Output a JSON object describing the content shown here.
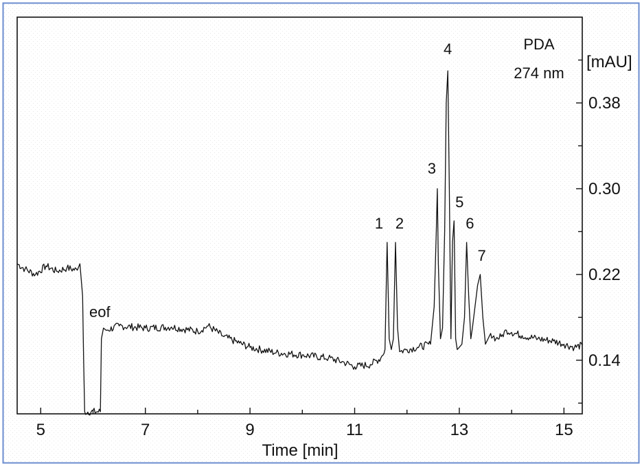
{
  "chart_data": {
    "type": "line",
    "title": "",
    "xlabel": "Time [min]",
    "ylabel": "[mAU]",
    "xlim": [
      4.55,
      15.35
    ],
    "ylim": [
      0.09,
      0.46
    ],
    "x_ticks": [
      5,
      7,
      9,
      11,
      13,
      15
    ],
    "y_ticks": [
      0.14,
      0.22,
      0.3,
      0.38
    ],
    "annotations": {
      "detector": "PDA",
      "wavelength": "274 nm",
      "eof": "eof"
    },
    "peaks": [
      {
        "label": "1",
        "x": 11.65,
        "y": 0.25
      },
      {
        "label": "2",
        "x": 11.78,
        "y": 0.25
      },
      {
        "label": "3",
        "x": 12.58,
        "y": 0.3
      },
      {
        "label": "4",
        "x": 12.78,
        "y": 0.41
      },
      {
        "label": "5",
        "x": 12.9,
        "y": 0.27
      },
      {
        "label": "6",
        "x": 13.15,
        "y": 0.25
      },
      {
        "label": "7",
        "x": 13.35,
        "y": 0.22
      }
    ],
    "series": [
      {
        "x": [
          4.55,
          4.7,
          4.9,
          5.1,
          5.3,
          5.5,
          5.7,
          5.75,
          5.8,
          5.82,
          5.84,
          6.14,
          6.16,
          6.2,
          6.25,
          6.5,
          7.0,
          7.5,
          8.0,
          8.2,
          8.5,
          8.8,
          9.0,
          9.5,
          10.0,
          10.5,
          10.8,
          11.0,
          11.3,
          11.5,
          11.58,
          11.62,
          11.66,
          11.7,
          11.72,
          11.74,
          11.78,
          11.82,
          11.86,
          12.0,
          12.2,
          12.45,
          12.52,
          12.56,
          12.58,
          12.6,
          12.64,
          12.68,
          12.72,
          12.75,
          12.78,
          12.81,
          12.84,
          12.87,
          12.9,
          12.93,
          12.96,
          13.0,
          13.05,
          13.1,
          13.14,
          13.18,
          13.22,
          13.25,
          13.3,
          13.35,
          13.4,
          13.45,
          13.5,
          13.55,
          13.6,
          13.7,
          13.8,
          13.9,
          14.0,
          14.2,
          14.5,
          14.8,
          15.0,
          15.2,
          15.35
        ],
        "y": [
          0.23,
          0.225,
          0.22,
          0.228,
          0.223,
          0.226,
          0.224,
          0.23,
          0.2,
          0.14,
          0.092,
          0.092,
          0.16,
          0.17,
          0.168,
          0.172,
          0.17,
          0.171,
          0.167,
          0.172,
          0.162,
          0.156,
          0.152,
          0.147,
          0.145,
          0.142,
          0.138,
          0.134,
          0.136,
          0.142,
          0.15,
          0.25,
          0.16,
          0.15,
          0.155,
          0.16,
          0.25,
          0.17,
          0.148,
          0.15,
          0.152,
          0.155,
          0.19,
          0.26,
          0.3,
          0.23,
          0.16,
          0.17,
          0.26,
          0.38,
          0.41,
          0.3,
          0.16,
          0.25,
          0.27,
          0.16,
          0.15,
          0.152,
          0.155,
          0.18,
          0.25,
          0.2,
          0.16,
          0.17,
          0.19,
          0.21,
          0.22,
          0.18,
          0.155,
          0.16,
          0.165,
          0.16,
          0.162,
          0.168,
          0.166,
          0.163,
          0.16,
          0.158,
          0.155,
          0.152,
          0.154
        ]
      }
    ],
    "grid": false,
    "legend": "none"
  }
}
